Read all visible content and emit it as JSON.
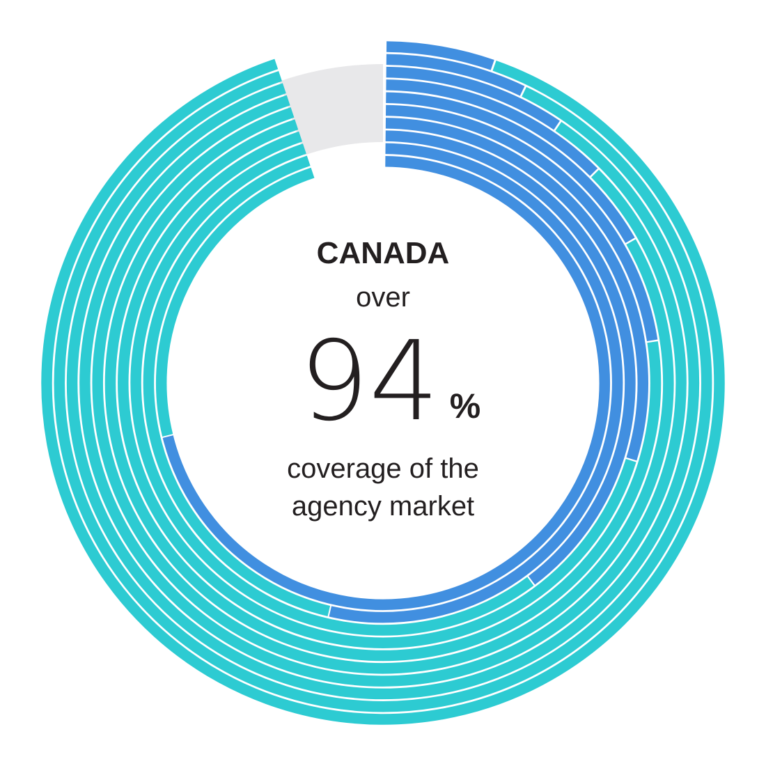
{
  "title": "CANADA",
  "prefix": "over",
  "figure": "94",
  "unit": "%",
  "caption": [
    "coverage of the",
    "agency market"
  ]
}
